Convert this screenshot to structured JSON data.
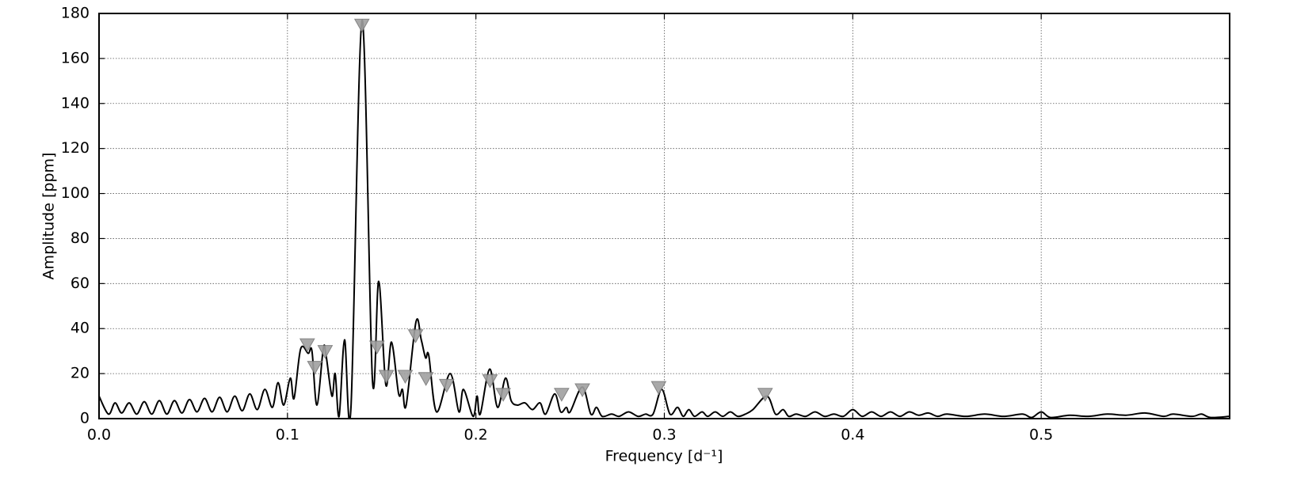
{
  "chart_data": {
    "type": "line",
    "x_label": "Frequency [d⁻¹]",
    "y_label": "Amplitude [ppm]",
    "xlim": [
      0,
      0.6
    ],
    "ylim": [
      0,
      180
    ],
    "xticks": [
      {
        "value": 0,
        "label": "0.0"
      },
      0.1,
      0.2,
      0.3,
      0.4,
      0.5
    ],
    "yticks": [
      0,
      20,
      40,
      60,
      80,
      100,
      120,
      140,
      160,
      180
    ],
    "grid": true,
    "series": [
      {
        "color": "#000000",
        "x": [
          0,
          0.005,
          0.0085,
          0.012,
          0.016,
          0.02,
          0.024,
          0.028,
          0.032,
          0.036,
          0.04,
          0.044,
          0.048,
          0.052,
          0.056,
          0.06,
          0.064,
          0.068,
          0.072,
          0.076,
          0.08,
          0.084,
          0.088,
          0.092,
          0.095,
          0.098,
          0.1015,
          0.1035,
          0.107,
          0.111,
          0.113,
          0.1156,
          0.119,
          0.1205,
          0.1236,
          0.1253,
          0.1274,
          0.1303,
          0.1337,
          0.1396,
          0.1451,
          0.1484,
          0.1522,
          0.1552,
          0.159,
          0.161,
          0.163,
          0.1682,
          0.171,
          0.1733,
          0.175,
          0.1791,
          0.1863,
          0.191,
          0.1934,
          0.1985,
          0.2006,
          0.2023,
          0.2073,
          0.2115,
          0.2157,
          0.2187,
          0.222,
          0.226,
          0.23,
          0.234,
          0.237,
          0.2418,
          0.245,
          0.248,
          0.25,
          0.2565,
          0.261,
          0.264,
          0.267,
          0.272,
          0.276,
          0.281,
          0.286,
          0.29,
          0.294,
          0.2986,
          0.303,
          0.307,
          0.31,
          0.313,
          0.316,
          0.32,
          0.323,
          0.327,
          0.331,
          0.335,
          0.339,
          0.343,
          0.347,
          0.3545,
          0.359,
          0.363,
          0.366,
          0.37,
          0.375,
          0.38,
          0.385,
          0.39,
          0.395,
          0.4,
          0.405,
          0.41,
          0.415,
          0.42,
          0.425,
          0.43,
          0.435,
          0.44,
          0.445,
          0.45,
          0.46,
          0.47,
          0.48,
          0.49,
          0.495,
          0.5,
          0.505,
          0.515,
          0.525,
          0.535,
          0.545,
          0.555,
          0.565,
          0.57,
          0.58,
          0.585,
          0.59,
          0.6
        ],
        "values": [
          10,
          2,
          7,
          2.5,
          7,
          2,
          7.5,
          2,
          8,
          2,
          8,
          2.5,
          8.5,
          3,
          9,
          3,
          9.5,
          3,
          10,
          3.5,
          11,
          4,
          13,
          5,
          16,
          6,
          18,
          9,
          31,
          29,
          30,
          6,
          31,
          28,
          10,
          20,
          1,
          35,
          5,
          177,
          17,
          61,
          15,
          34,
          11,
          13,
          6,
          43,
          35,
          27,
          28,
          3,
          20,
          3,
          13,
          1,
          10,
          2,
          22,
          5,
          18,
          8,
          6,
          7,
          4,
          7,
          2,
          11,
          3,
          5,
          3,
          14,
          2,
          5,
          1,
          2,
          1,
          3,
          1,
          2,
          2,
          13,
          2,
          5,
          1,
          4,
          1,
          3,
          1,
          3,
          1,
          3,
          1,
          2,
          4,
          10,
          2,
          4,
          1,
          2,
          1,
          3,
          1,
          2,
          1,
          4,
          1,
          3,
          1,
          3,
          1,
          3,
          1.5,
          2.5,
          1,
          2,
          1,
          2,
          1,
          2,
          0.5,
          3,
          0.5,
          1.5,
          1,
          2,
          1.5,
          2.5,
          1,
          2,
          1,
          2,
          0.5,
          1
        ]
      },
      {
        "color": "#a0a0a0",
        "marker": "triangle-down",
        "x": [
          0.1105,
          0.1145,
          0.12,
          0.1395,
          0.1475,
          0.1525,
          0.1625,
          0.168,
          0.1735,
          0.1845,
          0.2075,
          0.2145,
          0.2455,
          0.2565,
          0.297,
          0.3535
        ],
        "values": [
          33,
          23,
          30,
          175,
          32,
          19,
          19,
          37,
          18,
          15,
          17,
          11,
          11,
          13,
          14,
          11
        ]
      }
    ]
  }
}
